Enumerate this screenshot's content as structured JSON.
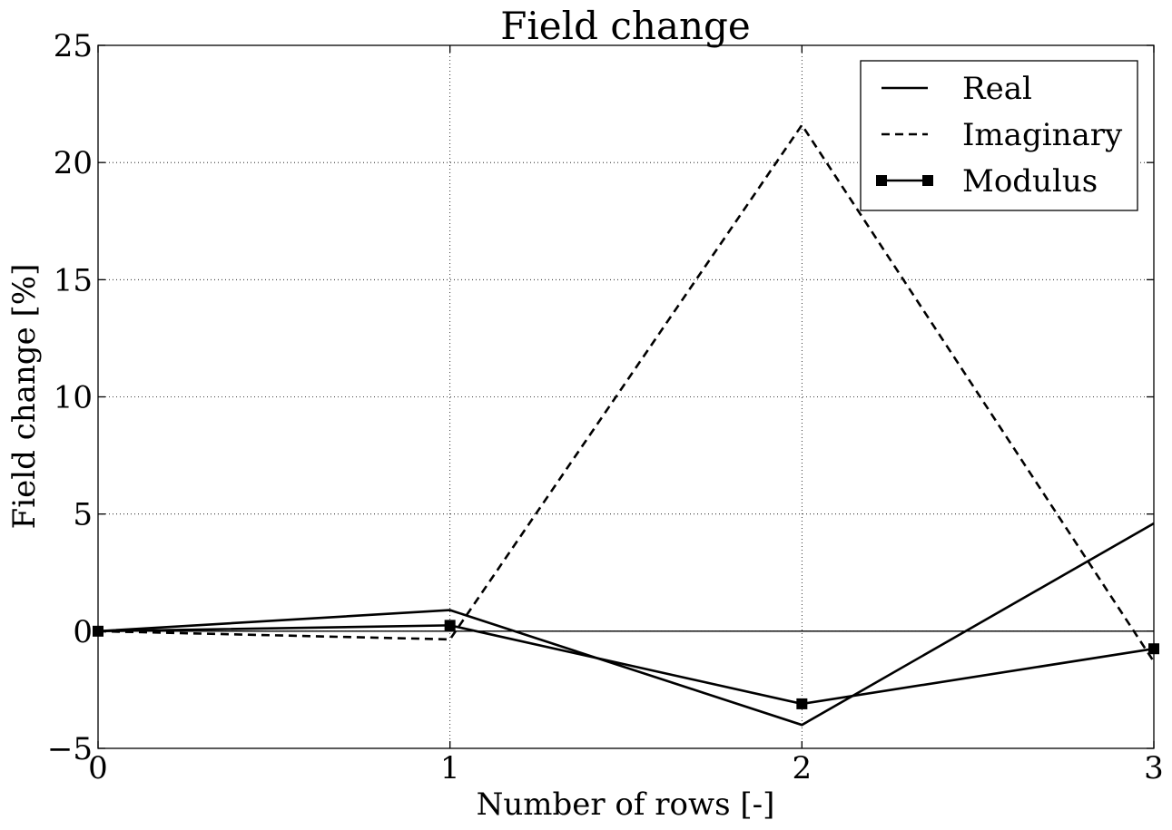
{
  "chart_data": {
    "type": "line",
    "title": "Field change",
    "xlabel": "Number of rows [-]",
    "ylabel": "Field change [%]",
    "xlim": [
      0,
      3
    ],
    "ylim": [
      -5,
      25
    ],
    "x_ticks": [
      0,
      1,
      2,
      3
    ],
    "x_tick_labels": [
      "0",
      "1",
      "2",
      "3"
    ],
    "y_ticks": [
      -5,
      0,
      5,
      10,
      15,
      20,
      25
    ],
    "y_tick_labels": [
      "−5",
      "0",
      "5",
      "10",
      "15",
      "20",
      "25"
    ],
    "grid": true,
    "zero_line": true,
    "legend_position": "top-right",
    "x": [
      0,
      1,
      2,
      3
    ],
    "series": [
      {
        "name": "Real",
        "style": "solid",
        "marker": "none",
        "color": "#000000",
        "values": [
          0,
          0.9,
          -4.0,
          4.6
        ]
      },
      {
        "name": "Imaginary",
        "style": "dashed",
        "marker": "none",
        "color": "#000000",
        "values": [
          0,
          -0.35,
          21.6,
          -1.3
        ]
      },
      {
        "name": "Modulus",
        "style": "solid",
        "marker": "square",
        "color": "#000000",
        "values": [
          0,
          0.25,
          -3.1,
          -0.75
        ]
      }
    ]
  }
}
